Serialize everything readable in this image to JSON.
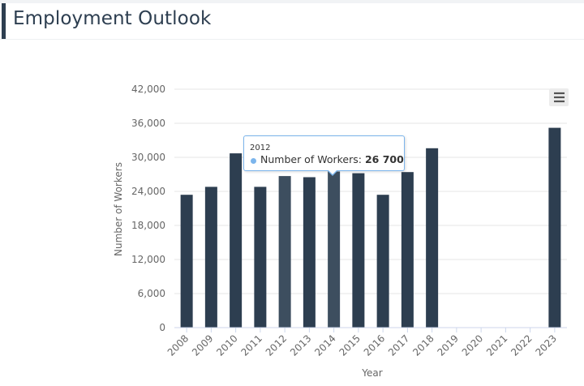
{
  "page": {
    "title": "Employment Outlook"
  },
  "colors": {
    "bar": "#2d3e50",
    "bar_hover": "#3d4e5f",
    "tooltip_border": "#7cb5ec",
    "accent": "#2d3e50"
  },
  "menu": {
    "icon": "hamburger-icon"
  },
  "tooltip": {
    "header": "2012",
    "series_label": "Number of Workers: ",
    "value": "26 700"
  },
  "chart_data": {
    "type": "bar",
    "title": "",
    "xlabel": "Year",
    "ylabel": "Number of Workers",
    "ylim": [
      0,
      42000
    ],
    "yticks": [
      0,
      6000,
      12000,
      18000,
      24000,
      30000,
      36000,
      42000
    ],
    "ytick_labels": [
      "0",
      "6,000",
      "12,000",
      "18,000",
      "24,000",
      "30,000",
      "36,000",
      "42,000"
    ],
    "categories": [
      "2008",
      "2009",
      "2010",
      "2011",
      "2012",
      "2013",
      "2014",
      "2015",
      "2016",
      "2017",
      "2018",
      "2019",
      "2020",
      "2021",
      "2022",
      "2023"
    ],
    "series": [
      {
        "name": "Number of Workers",
        "values": [
          23400,
          24800,
          30700,
          24800,
          26700,
          26500,
          27500,
          27200,
          23400,
          27400,
          31600,
          null,
          null,
          null,
          null,
          35200
        ]
      }
    ],
    "highlighted": [
      "2012",
      "2014"
    ],
    "grid": true
  }
}
